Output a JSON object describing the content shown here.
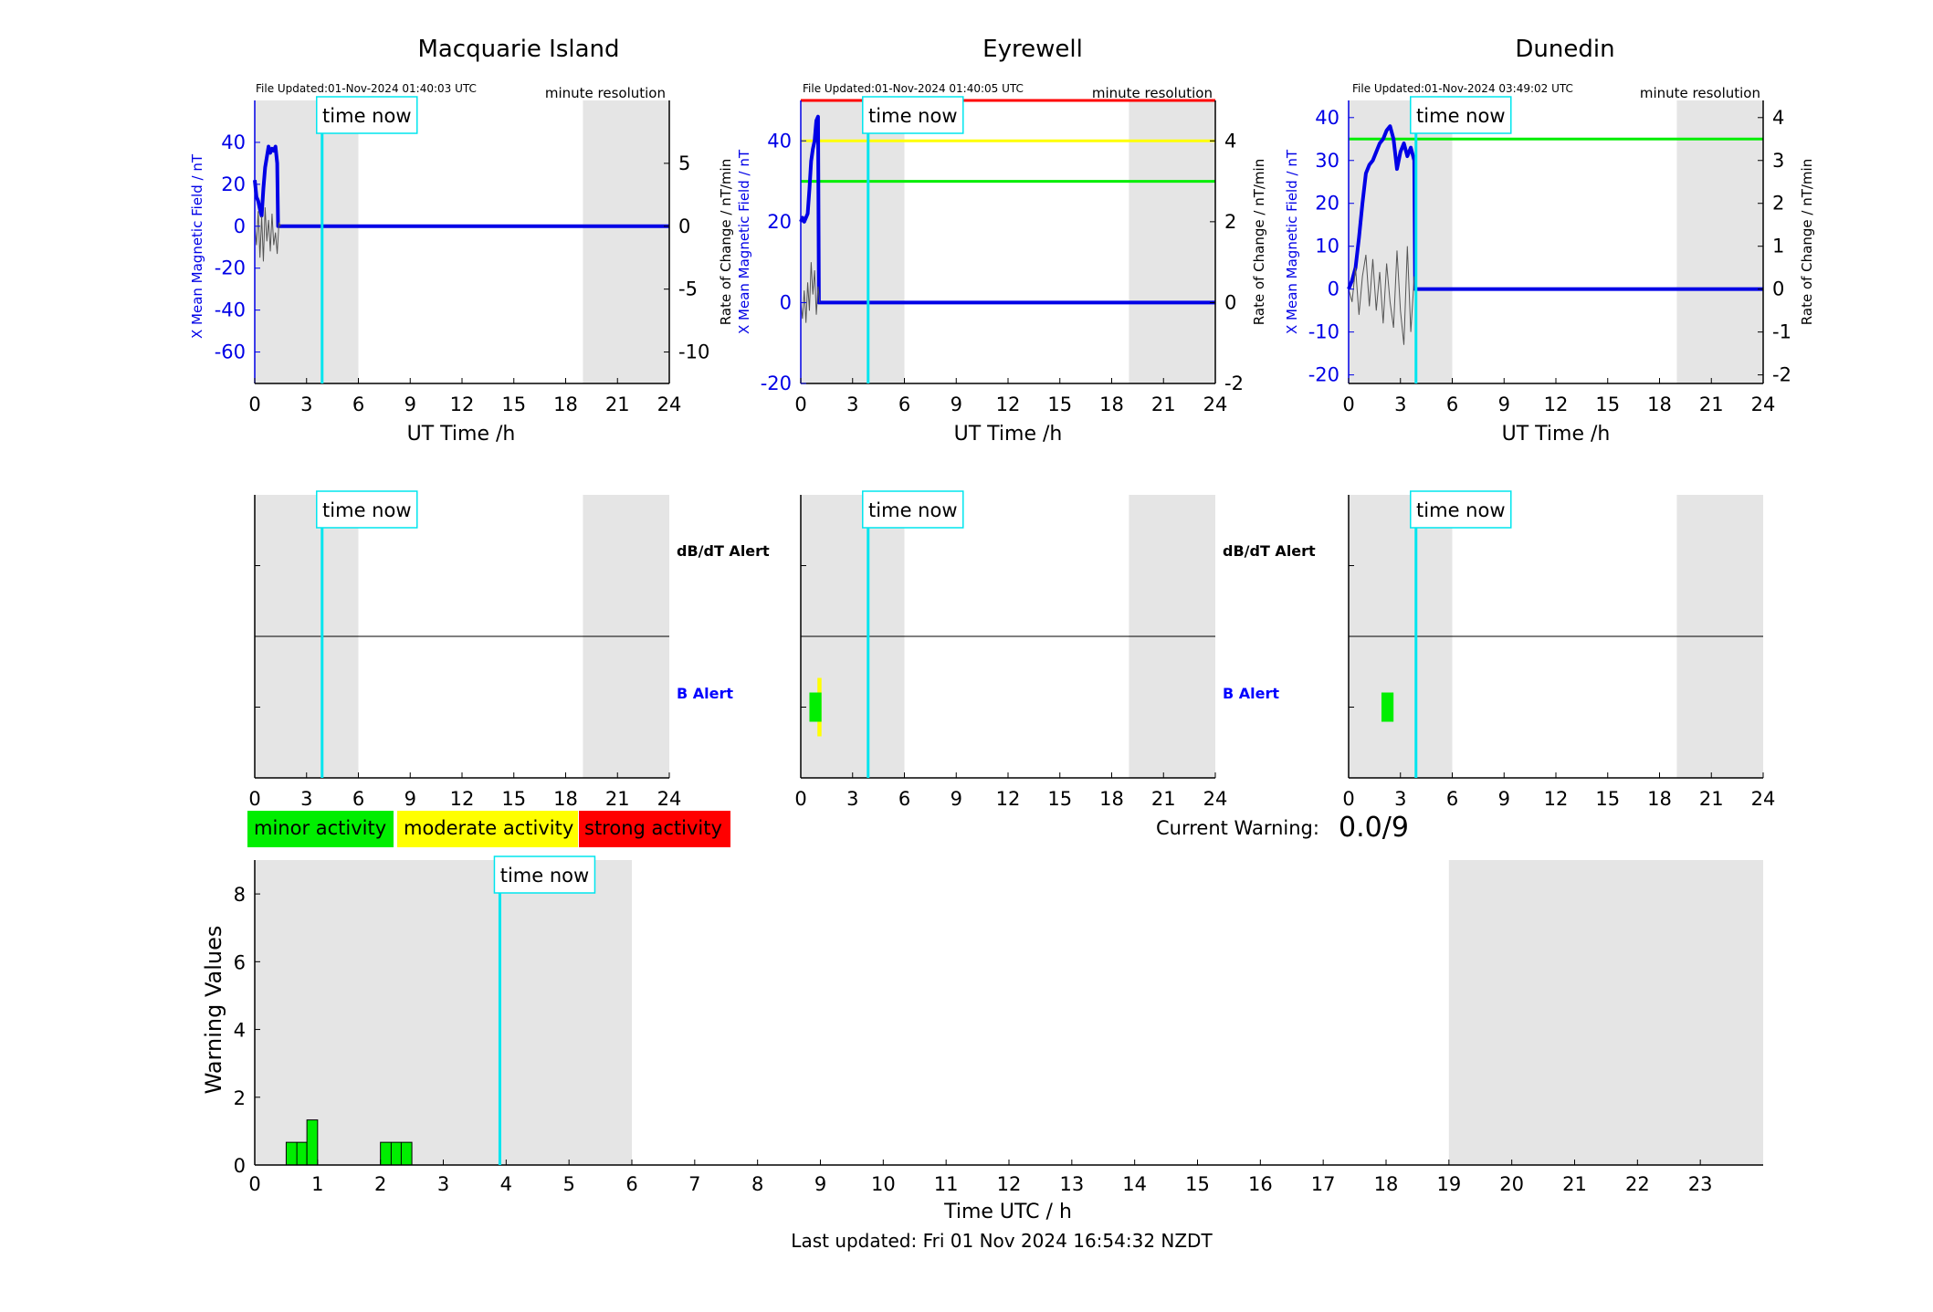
{
  "colors": {
    "field": "#0000e6",
    "rate": "#555555",
    "now": "#00e5ee",
    "night": "#e5e5e5",
    "minor": "#00ee00",
    "moderate": "#ffff00",
    "strong": "#ff0000",
    "alert_b": "#0000ff",
    "alert_dbdt": "#000000"
  },
  "common": {
    "time_now_label": "time now",
    "ut_xlabel": "UT Time /h",
    "x_ticks": [
      0,
      3,
      6,
      9,
      12,
      15,
      18,
      21,
      24
    ],
    "left_ylabel": "X Mean Magnetic Field / nT",
    "right_ylabel": "Rate of Change / nT/min",
    "resolution_note": "minute resolution",
    "dbdt_alert_label": "dB/dT Alert",
    "b_alert_label": "B Alert"
  },
  "legend": {
    "minor": "minor activity",
    "moderate": "moderate activity",
    "strong": "strong activity"
  },
  "current_warning": {
    "label": "Current Warning:",
    "value": "0.0/9"
  },
  "footer": {
    "last_updated": "Last updated: Fri 01 Nov 2024 16:54:32 NZDT"
  },
  "chart_data": [
    {
      "type": "line",
      "station": "Macquarie Island",
      "title": "Macquarie Island",
      "file_updated": "File Updated:01-Nov-2024 01:40:03 UTC",
      "xlabel": "UT Time /h",
      "xlim": [
        0,
        24
      ],
      "ylim_left": [
        -75,
        60
      ],
      "left_ticks": [
        40,
        20,
        0,
        -20,
        -40,
        -60
      ],
      "ylim_right": [
        -12.5,
        10
      ],
      "right_ticks": [
        5,
        0,
        -5,
        -10
      ],
      "night_bands": [
        [
          0,
          6
        ],
        [
          19,
          24
        ]
      ],
      "time_now": 3.9,
      "threshold_lines": [],
      "series": [
        {
          "name": "X Mean Magnetic Field / nT",
          "axis": "left",
          "x": [
            0,
            0.1,
            0.2,
            0.3,
            0.4,
            0.5,
            0.6,
            0.7,
            0.8,
            0.9,
            1.0,
            1.1,
            1.2,
            1.3,
            1.35,
            1.45,
            24
          ],
          "y": [
            22,
            14,
            12,
            8,
            5,
            18,
            28,
            33,
            38,
            35,
            37,
            36,
            38,
            30,
            0,
            0,
            0
          ]
        },
        {
          "name": "Rate of Change / nT/min",
          "axis": "right",
          "x": [
            0,
            0.1,
            0.2,
            0.3,
            0.4,
            0.5,
            0.6,
            0.7,
            0.8,
            0.9,
            1.0,
            1.1,
            1.2,
            1.3,
            1.4,
            1.5
          ],
          "y": [
            0,
            -1.5,
            1.2,
            -2.5,
            0.8,
            -2.8,
            1.5,
            -1.2,
            0.5,
            -2,
            1,
            -1.5,
            -0.5,
            -2.2,
            0.3,
            0
          ]
        }
      ]
    },
    {
      "type": "line",
      "station": "Eyrewell",
      "title": "Eyrewell",
      "file_updated": "File Updated:01-Nov-2024 01:40:05 UTC",
      "xlabel": "UT Time /h",
      "xlim": [
        0,
        24
      ],
      "ylim_left": [
        -20,
        50
      ],
      "left_ticks": [
        40,
        20,
        0,
        -20
      ],
      "ylim_right": [
        -2,
        5
      ],
      "right_ticks": [
        4,
        2,
        0,
        -2
      ],
      "night_bands": [
        [
          0,
          6
        ],
        [
          19,
          24
        ]
      ],
      "time_now": 3.9,
      "threshold_lines": [
        {
          "level": 50,
          "color": "#ff0000"
        },
        {
          "level": 40,
          "color": "#ffff00"
        },
        {
          "level": 30,
          "color": "#00ee00"
        }
      ],
      "series": [
        {
          "name": "X Mean Magnetic Field / nT",
          "axis": "left",
          "x": [
            0,
            0.1,
            0.2,
            0.3,
            0.4,
            0.5,
            0.6,
            0.7,
            0.8,
            0.9,
            1.0,
            1.05,
            1.1,
            24
          ],
          "y": [
            20,
            21,
            20,
            21,
            22,
            28,
            35,
            38,
            40,
            45,
            46,
            0,
            0,
            0
          ]
        },
        {
          "name": "Rate of Change / nT/min",
          "axis": "right",
          "x": [
            0,
            0.1,
            0.2,
            0.3,
            0.4,
            0.5,
            0.6,
            0.7,
            0.8,
            0.9,
            1.0,
            1.1
          ],
          "y": [
            0,
            -0.4,
            0.3,
            -0.5,
            0.5,
            -0.2,
            1,
            0.2,
            0.8,
            -0.3,
            0.4,
            0
          ]
        }
      ]
    },
    {
      "type": "line",
      "station": "Dunedin",
      "title": "Dunedin",
      "file_updated": "File Updated:01-Nov-2024 03:49:02 UTC",
      "xlabel": "UT Time /h",
      "xlim": [
        0,
        24
      ],
      "ylim_left": [
        -22,
        44
      ],
      "left_ticks": [
        40,
        30,
        20,
        10,
        0,
        -10,
        -20
      ],
      "ylim_right": [
        -2.2,
        4.4
      ],
      "right_ticks": [
        4,
        3,
        2,
        1,
        0,
        -1,
        -2
      ],
      "night_bands": [
        [
          0,
          6
        ],
        [
          19,
          24
        ]
      ],
      "time_now": 3.9,
      "threshold_lines": [
        {
          "level": 35,
          "color": "#00ee00"
        }
      ],
      "series": [
        {
          "name": "X Mean Magnetic Field / nT",
          "axis": "left",
          "x": [
            0,
            0.2,
            0.4,
            0.6,
            0.8,
            1.0,
            1.2,
            1.4,
            1.6,
            1.8,
            2.0,
            2.2,
            2.4,
            2.6,
            2.8,
            3.0,
            3.2,
            3.4,
            3.6,
            3.8,
            3.85,
            4.0,
            24
          ],
          "y": [
            0,
            2,
            5,
            12,
            20,
            27,
            29,
            30,
            32,
            34,
            35,
            37,
            38,
            35,
            28,
            32,
            34,
            31,
            33,
            30,
            0,
            0,
            0
          ]
        },
        {
          "name": "Rate of Change / nT/min",
          "axis": "right",
          "x": [
            0,
            0.2,
            0.4,
            0.6,
            0.8,
            1.0,
            1.2,
            1.4,
            1.6,
            1.8,
            2.0,
            2.2,
            2.4,
            2.6,
            2.8,
            3.0,
            3.2,
            3.4,
            3.6,
            3.8
          ],
          "y": [
            0,
            -0.3,
            0.5,
            -0.6,
            0.3,
            0.8,
            -0.4,
            0.7,
            -0.5,
            0.4,
            -0.8,
            0.6,
            -0.3,
            -0.9,
            0.9,
            -0.5,
            -1.3,
            1,
            -1,
            0.3
          ]
        }
      ]
    },
    {
      "type": "bar",
      "station": "Macquarie Island",
      "xlim": [
        0,
        24
      ],
      "night_bands": [
        [
          0,
          6
        ],
        [
          19,
          24
        ]
      ],
      "time_now": 3.9,
      "dbdt_alerts": [],
      "b_alerts": []
    },
    {
      "type": "bar",
      "station": "Eyrewell",
      "xlim": [
        0,
        24
      ],
      "night_bands": [
        [
          0,
          6
        ],
        [
          19,
          24
        ]
      ],
      "time_now": 3.9,
      "dbdt_alerts": [],
      "b_alerts": [
        {
          "start": 0.7,
          "end": 1.2,
          "level": "moderate",
          "extent": "large"
        },
        {
          "start": 0.5,
          "end": 1.2,
          "level": "minor",
          "extent": "small"
        }
      ]
    },
    {
      "type": "bar",
      "station": "Dunedin",
      "xlim": [
        0,
        24
      ],
      "night_bands": [
        [
          0,
          6
        ],
        [
          19,
          24
        ]
      ],
      "time_now": 3.9,
      "dbdt_alerts": [],
      "b_alerts": [
        {
          "start": 1.9,
          "end": 2.6,
          "level": "minor",
          "extent": "small"
        }
      ]
    },
    {
      "type": "bar",
      "title": "",
      "xlabel": "Time UTC / h",
      "ylabel": "Warning Values",
      "xlim": [
        0,
        24
      ],
      "ylim": [
        0,
        9
      ],
      "x_ticks": [
        0,
        1,
        2,
        3,
        4,
        5,
        6,
        7,
        8,
        9,
        10,
        11,
        12,
        13,
        14,
        15,
        16,
        17,
        18,
        19,
        20,
        21,
        22,
        23
      ],
      "y_ticks": [
        0,
        2,
        4,
        6,
        8
      ],
      "night_bands": [
        [
          0,
          6
        ],
        [
          19,
          24
        ]
      ],
      "time_now": 3.9,
      "bars": [
        {
          "start": 0.5,
          "end": 0.83,
          "value": 0.67
        },
        {
          "start": 0.83,
          "end": 1.0,
          "value": 1.33
        },
        {
          "start": 2.0,
          "end": 2.5,
          "value": 0.67
        }
      ]
    }
  ]
}
